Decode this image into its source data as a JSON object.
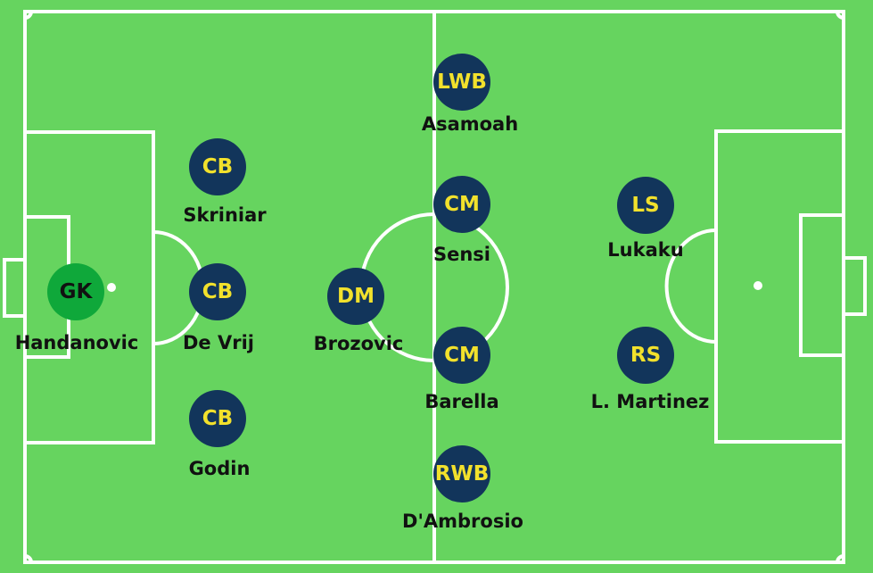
{
  "colors": {
    "pitch": "#66d45f",
    "lines": "#ffffff",
    "token": "#12355b",
    "token_text": "#f2e12c",
    "goalkeeper": "#0fa83a",
    "goalkeeper_text": "#111111",
    "name_text": "#111111"
  },
  "players": [
    {
      "position": "GK",
      "name": "Handanovic",
      "goalkeeper": true
    },
    {
      "position": "CB",
      "name": "Skriniar"
    },
    {
      "position": "CB",
      "name": "De Vrij"
    },
    {
      "position": "CB",
      "name": "Godin"
    },
    {
      "position": "DM",
      "name": "Brozovic"
    },
    {
      "position": "LWB",
      "name": "Asamoah"
    },
    {
      "position": "CM",
      "name": "Sensi"
    },
    {
      "position": "CM",
      "name": "Barella"
    },
    {
      "position": "RWB",
      "name": "D'Ambrosio"
    },
    {
      "position": "LS",
      "name": "Lukaku"
    },
    {
      "position": "RS",
      "name": "L. Martinez"
    }
  ]
}
